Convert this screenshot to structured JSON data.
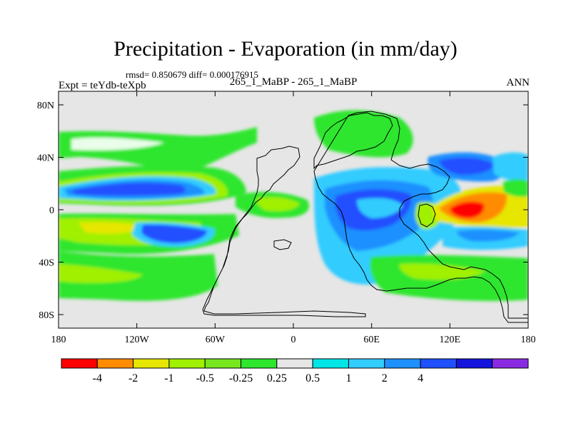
{
  "title": "Precipitation - Evaporation (in mm/day)",
  "stats": "rmsd= 0.850679 diff= 0.000176915",
  "experiment": "Expt = teYdb-teXpb",
  "subtitle": "265_1_MaBP - 265_1_MaBP",
  "season": "ANN",
  "lat_ticks": [
    "80N",
    "40N",
    "0",
    "40S",
    "80S"
  ],
  "lon_ticks": [
    "180",
    "120W",
    "60W",
    "0",
    "60E",
    "120E",
    "180"
  ],
  "colorbar": {
    "colors": [
      "#ff0000",
      "#ff8c00",
      "#e6e600",
      "#a0f000",
      "#78e61e",
      "#2de62d",
      "#e6e6e6",
      "#00e6e6",
      "#33ccff",
      "#1e90ff",
      "#2050ff",
      "#1414dc",
      "#8a2be2"
    ],
    "labels": [
      "-4",
      "-2",
      "-1",
      "-0.5",
      "-0.25",
      "0.25",
      "0.5",
      "1",
      "2",
      "4"
    ]
  }
}
